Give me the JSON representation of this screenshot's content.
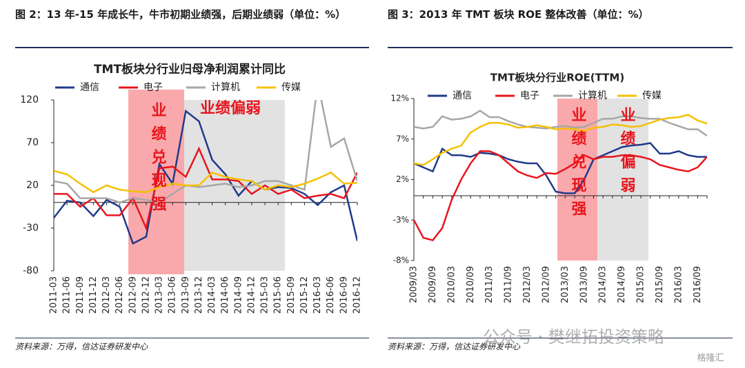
{
  "chart_data": [
    {
      "type": "line",
      "caption": "图 2：13 年-15 年成长牛，牛市初期业绩强，后期业绩弱（单位：%）",
      "title": "TMT板块分行业归母净利润累计同比",
      "source": "资料来源：万得，信达证券研发中心",
      "categories": [
        "2011-03",
        "2011-06",
        "2011-09",
        "2011-12",
        "2012-03",
        "2012-06",
        "2012-09",
        "2012-12",
        "2013-03",
        "2013-06",
        "2013-09",
        "2013-12",
        "2014-03",
        "2014-06",
        "2014-09",
        "2014-12",
        "2015-03",
        "2015-06",
        "2015-09",
        "2015-12",
        "2016-03",
        "2016-06",
        "2016-09",
        "2016-12"
      ],
      "series": [
        {
          "name": "通信",
          "color": "#1f3a8a",
          "values": [
            -18,
            2,
            0,
            -16,
            3,
            -5,
            -48,
            -40,
            45,
            22,
            107,
            95,
            50,
            33,
            8,
            25,
            15,
            18,
            17,
            10,
            -3,
            12,
            20,
            -45
          ]
        },
        {
          "name": "电子",
          "color": "#e8151d",
          "values": [
            10,
            10,
            -5,
            5,
            -15,
            -15,
            5,
            -30,
            40,
            42,
            30,
            63,
            27,
            27,
            25,
            10,
            20,
            10,
            15,
            5,
            8,
            10,
            5,
            35
          ]
        },
        {
          "name": "计算机",
          "color": "#a6a6a6",
          "values": [
            25,
            22,
            5,
            5,
            5,
            0,
            5,
            3,
            0,
            10,
            20,
            18,
            20,
            22,
            18,
            20,
            25,
            25,
            20,
            15,
            140,
            65,
            75,
            25
          ]
        },
        {
          "name": "传媒",
          "color": "#f5c000",
          "values": [
            37,
            33,
            22,
            12,
            20,
            15,
            13,
            12,
            18,
            22,
            20,
            20,
            35,
            30,
            27,
            25,
            15,
            20,
            18,
            22,
            28,
            35,
            22,
            23
          ]
        }
      ],
      "annotations": [
        "业绩兑现强",
        "业绩偏弱"
      ],
      "ylim": [
        -80,
        120
      ],
      "yticks": [
        -80,
        -30,
        20,
        70,
        120
      ]
    },
    {
      "type": "line",
      "caption": "图 3：2013 年 TMT 板块 ROE 整体改善（单位：%）",
      "title": "TMT板块分行业ROE(TTM)",
      "source": "资料来源：万得，信达证券研发中心",
      "categories": [
        "2009/03",
        null,
        "2009/09",
        null,
        "2010/03",
        null,
        "2010/09",
        null,
        "2011/03",
        null,
        "2011/09",
        null,
        "2012/03",
        null,
        "2012/09",
        null,
        "2013/03",
        null,
        "2013/09",
        null,
        "2014/03",
        null,
        "2014/09",
        null,
        "2015/03",
        null,
        "2015/09",
        null,
        "2016/03",
        null,
        "2016/09",
        null
      ],
      "series": [
        {
          "name": "通信",
          "color": "#1f3a8a",
          "values": [
            4,
            3.5,
            3,
            5.8,
            5,
            5,
            4.8,
            5.3,
            5.2,
            5,
            4.5,
            4.2,
            4,
            4,
            2.5,
            0.5,
            0.3,
            0.3,
            2,
            4.5,
            5,
            5.5,
            6,
            6.2,
            6.3,
            6.5,
            5.2,
            5.2,
            5.5,
            5,
            4.8,
            4.8
          ]
        },
        {
          "name": "电子",
          "color": "#e8151d",
          "values": [
            -3,
            -5.2,
            -5.5,
            -4,
            -0.5,
            2,
            4,
            5.5,
            5.5,
            5,
            4,
            3,
            2.5,
            2.2,
            2.8,
            2.7,
            3.3,
            4,
            5,
            4.5,
            4.8,
            4.8,
            5,
            5,
            4.8,
            4.5,
            3.8,
            3.5,
            3.2,
            3,
            3.5,
            4.8
          ]
        },
        {
          "name": "计算机",
          "color": "#a6a6a6",
          "values": [
            8.5,
            8.3,
            8.5,
            9.8,
            9.4,
            9.5,
            9.8,
            10.5,
            9.7,
            9.7,
            9.2,
            8.8,
            8.5,
            8.4,
            8.3,
            8.5,
            8.6,
            8.4,
            8.5,
            9,
            9.5,
            9.5,
            9.8,
            9.8,
            9.6,
            9.5,
            9.5,
            9,
            8.6,
            8.2,
            8.2,
            7.4
          ]
        },
        {
          "name": "传媒",
          "color": "#f5c000",
          "values": [
            4,
            3.8,
            4.5,
            5.3,
            5.8,
            6.2,
            7.8,
            8.5,
            9,
            9,
            8.8,
            8.4,
            8.5,
            8.7,
            8.5,
            8.2,
            8.3,
            8.2,
            8,
            8.4,
            8.5,
            8.8,
            8.7,
            8.5,
            8.6,
            9,
            9.4,
            9.6,
            9.7,
            10,
            9.3,
            8.9
          ]
        }
      ],
      "annotations": [
        "业绩兑现强",
        "业绩偏弱"
      ],
      "ylim": [
        -8,
        12
      ],
      "yticks": [
        {
          "value": -8,
          "label": "-8%"
        },
        {
          "value": -3,
          "label": "-3%"
        },
        {
          "value": 2,
          "label": "2%"
        },
        {
          "value": 7,
          "label": "7%"
        },
        {
          "value": 12,
          "label": "12%"
        }
      ]
    }
  ],
  "watermark": [
    "公众号 · 樊继拓投资策略",
    "格隆汇"
  ]
}
